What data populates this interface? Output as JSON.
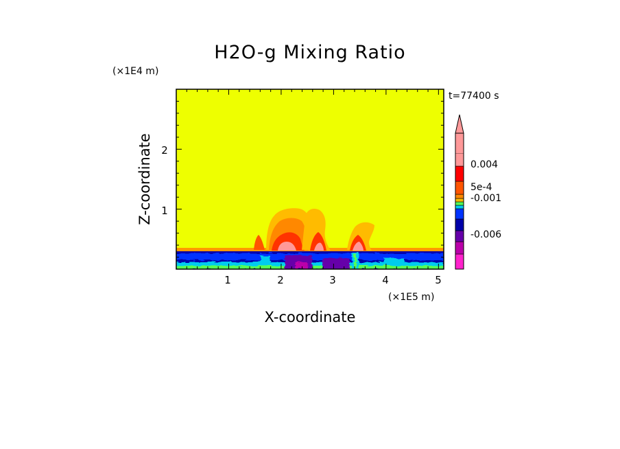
{
  "chart_data": {
    "type": "heatmap",
    "title": "H2O-g Mixing Ratio",
    "xlabel": "X-coordinate",
    "ylabel": "Z-coordinate",
    "x_unit": "(×1E5 m)",
    "y_unit": "(×1E4 m)",
    "time_label": "t=77400 s",
    "xlim": [
      0,
      5.1
    ],
    "ylim": [
      0,
      3.0
    ],
    "x_ticks": [
      "1",
      "2",
      "3",
      "4",
      "5"
    ],
    "y_ticks": [
      "1",
      "2"
    ],
    "background_color": "#eeff00",
    "colorbar": {
      "labels": [
        {
          "text": "0.004",
          "at": 0.004
        },
        {
          "text": "5e-4",
          "at": 0.0005
        },
        {
          "text": "-0.001",
          "at": -0.001
        },
        {
          "text": "-0.006",
          "at": -0.006
        }
      ],
      "bands": [
        {
          "color": "#ff22cc",
          "level": -0.009
        },
        {
          "color": "#bb00aa",
          "level": -0.007
        },
        {
          "color": "#6600aa",
          "level": -0.005
        },
        {
          "color": "#0000aa",
          "level": -0.003
        },
        {
          "color": "#0033ff",
          "level": -0.002
        },
        {
          "color": "#00ccee",
          "level": -0.001
        },
        {
          "color": "#55ff55",
          "level": -0.0005
        },
        {
          "color": "#ffbb00",
          "level": 0.0003
        },
        {
          "color": "#ff8800",
          "level": 0.0005
        },
        {
          "color": "#ff5500",
          "level": 0.003
        },
        {
          "color": "#ff0000",
          "level": 0.004
        },
        {
          "color": "#ff9999",
          "level": 0.006
        }
      ]
    },
    "regions": [
      {
        "name": "surface-layer",
        "colors": [
          "#0000aa",
          "#0033ff",
          "#00ccee",
          "#55ff55",
          "#6600aa"
        ]
      },
      {
        "name": "convective-plumes",
        "colors": [
          "#ff9999",
          "#ff0000",
          "#ff5500",
          "#ff8800",
          "#ffbb00"
        ]
      }
    ]
  }
}
